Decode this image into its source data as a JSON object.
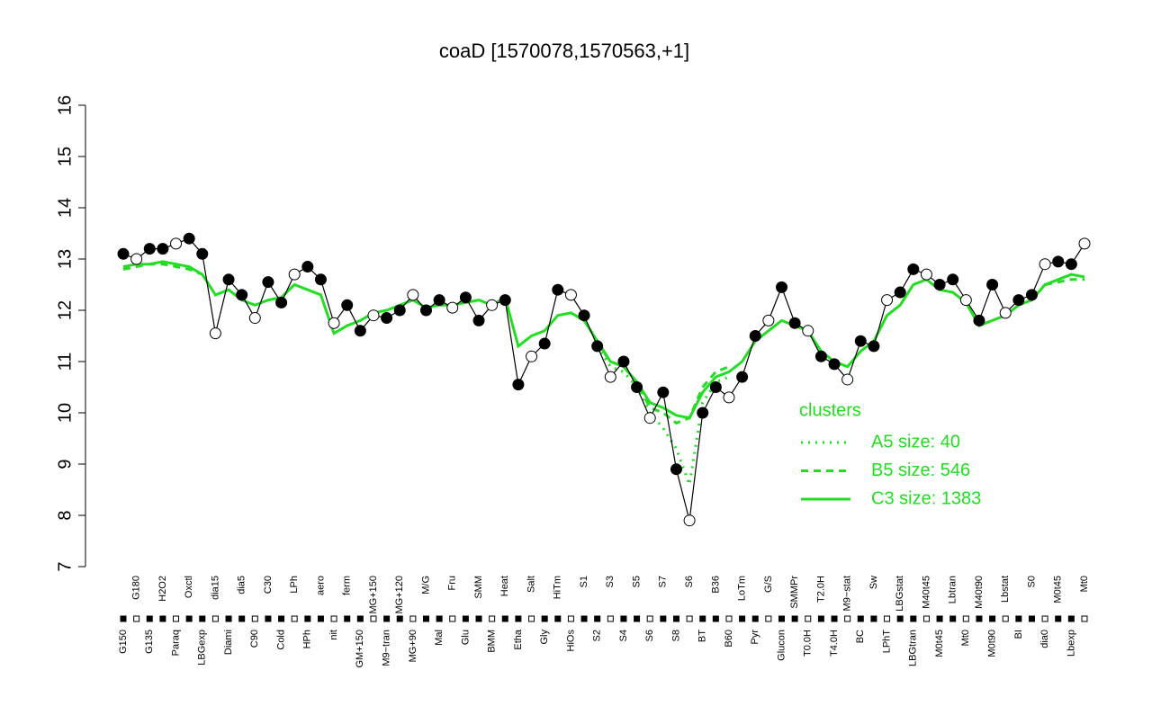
{
  "chart_data": {
    "type": "line",
    "title": "coaD [1570078,1570563,+1]",
    "categories": [
      "G150",
      "G180",
      "G135",
      "H2O2",
      "Paraq",
      "Oxctl",
      "LBGexp",
      "dia15",
      "Diami",
      "dia5",
      "C90",
      "C30",
      "Cold",
      "LPh",
      "HPh",
      "aero",
      "nit",
      "ferm",
      "GM+150",
      "MG+150",
      "M9−tran",
      "MG+120",
      "MG+90",
      "M/G",
      "Mal",
      "Fru",
      "Glu",
      "SMM",
      "BMM",
      "Heat",
      "Etha",
      "Salt",
      "Gly",
      "HiTm",
      "HiOs",
      "S1",
      "S2",
      "S3",
      "S4",
      "S5",
      "S6",
      "S7",
      "S8",
      "S6",
      "BT",
      "B36",
      "B60",
      "LoTm",
      "Pyr",
      "G/S",
      "Glucon",
      "SMMPr",
      "T0.0H",
      "T2.0H",
      "T4.0H",
      "M9−stat",
      "BC",
      "Sw",
      "LPhT",
      "LBGstat",
      "LBGtran",
      "M40t45",
      "M0t45",
      "Lbtran",
      "Mt0",
      "M40t90",
      "M0t90",
      "Lbstat",
      "BI",
      "S0",
      "dia0",
      "M0t45",
      "Lbexp",
      "Mt0"
    ],
    "values": [
      13.1,
      13.0,
      13.2,
      13.2,
      13.3,
      13.4,
      13.1,
      11.55,
      12.6,
      12.3,
      11.85,
      12.55,
      12.15,
      12.7,
      12.85,
      12.6,
      11.75,
      12.1,
      11.6,
      11.9,
      11.85,
      12.0,
      12.3,
      12.0,
      12.2,
      12.05,
      12.25,
      11.8,
      12.1,
      12.2,
      10.55,
      11.1,
      11.35,
      12.4,
      12.3,
      11.9,
      11.3,
      10.7,
      11.0,
      10.5,
      9.9,
      10.4,
      8.9,
      7.9,
      10.0,
      10.5,
      10.3,
      10.7,
      11.5,
      11.8,
      12.45,
      11.75,
      11.6,
      11.1,
      10.95,
      10.65,
      11.4,
      11.3,
      12.2,
      12.35,
      12.8,
      12.7,
      12.5,
      12.6,
      12.2,
      11.8,
      12.5,
      11.95,
      12.2,
      12.3,
      12.9,
      12.95,
      12.9,
      13.3
    ],
    "color": "#000000",
    "legend_title": "clusters",
    "series": [
      {
        "name": "A5 size: 40",
        "color": "#22dd22",
        "style": "dotted",
        "values": [
          null,
          null,
          null,
          null,
          null,
          null,
          null,
          null,
          null,
          null,
          null,
          null,
          null,
          null,
          null,
          null,
          null,
          null,
          null,
          null,
          null,
          null,
          null,
          null,
          null,
          null,
          null,
          null,
          null,
          null,
          null,
          null,
          null,
          null,
          null,
          null,
          11.3,
          10.9,
          10.8,
          10.5,
          10.0,
          9.7,
          9.3,
          8.6,
          10.2,
          10.6,
          10.7,
          null,
          null,
          null,
          null,
          null,
          null,
          null,
          null,
          null,
          null,
          null,
          null,
          null,
          null,
          null,
          null,
          null,
          null,
          null,
          null,
          null,
          null,
          null,
          null,
          null,
          null,
          null
        ]
      },
      {
        "name": "B5 size: 546",
        "color": "#22dd22",
        "style": "dashed",
        "values": [
          12.8,
          12.85,
          12.9,
          12.9,
          12.85,
          12.8,
          12.7,
          null,
          null,
          null,
          null,
          null,
          null,
          null,
          null,
          null,
          null,
          null,
          null,
          null,
          null,
          null,
          null,
          null,
          null,
          null,
          null,
          null,
          null,
          null,
          null,
          null,
          null,
          null,
          null,
          null,
          11.35,
          11.0,
          10.9,
          10.6,
          10.1,
          10.0,
          9.8,
          9.9,
          10.5,
          10.8,
          10.9,
          null,
          null,
          null,
          null,
          null,
          null,
          null,
          null,
          null,
          null,
          null,
          null,
          null,
          null,
          null,
          null,
          null,
          null,
          null,
          null,
          null,
          null,
          null,
          12.5,
          12.55,
          12.6,
          12.6
        ]
      },
      {
        "name": "C3 size: 1383",
        "color": "#22dd22",
        "style": "solid",
        "values": [
          12.85,
          12.9,
          12.9,
          12.95,
          12.9,
          12.85,
          12.7,
          12.3,
          12.4,
          12.2,
          12.1,
          12.2,
          12.25,
          12.5,
          12.4,
          12.3,
          11.55,
          11.7,
          11.8,
          11.95,
          12.0,
          12.1,
          12.2,
          12.05,
          12.1,
          12.1,
          12.15,
          12.2,
          12.1,
          12.25,
          11.3,
          11.5,
          11.6,
          11.9,
          11.95,
          11.8,
          11.4,
          11.0,
          10.9,
          10.6,
          10.2,
          10.1,
          9.95,
          9.9,
          10.4,
          10.7,
          10.8,
          11.0,
          11.4,
          11.6,
          11.8,
          11.7,
          11.6,
          11.2,
          11.0,
          10.9,
          11.2,
          11.4,
          11.9,
          12.1,
          12.5,
          12.6,
          12.4,
          12.35,
          12.15,
          11.7,
          11.8,
          11.9,
          12.1,
          12.2,
          12.5,
          12.6,
          12.7,
          12.65
        ]
      }
    ],
    "ylim": [
      7,
      16
    ],
    "yticks": [
      7,
      8,
      9,
      10,
      11,
      12,
      13,
      14,
      15,
      16
    ]
  }
}
